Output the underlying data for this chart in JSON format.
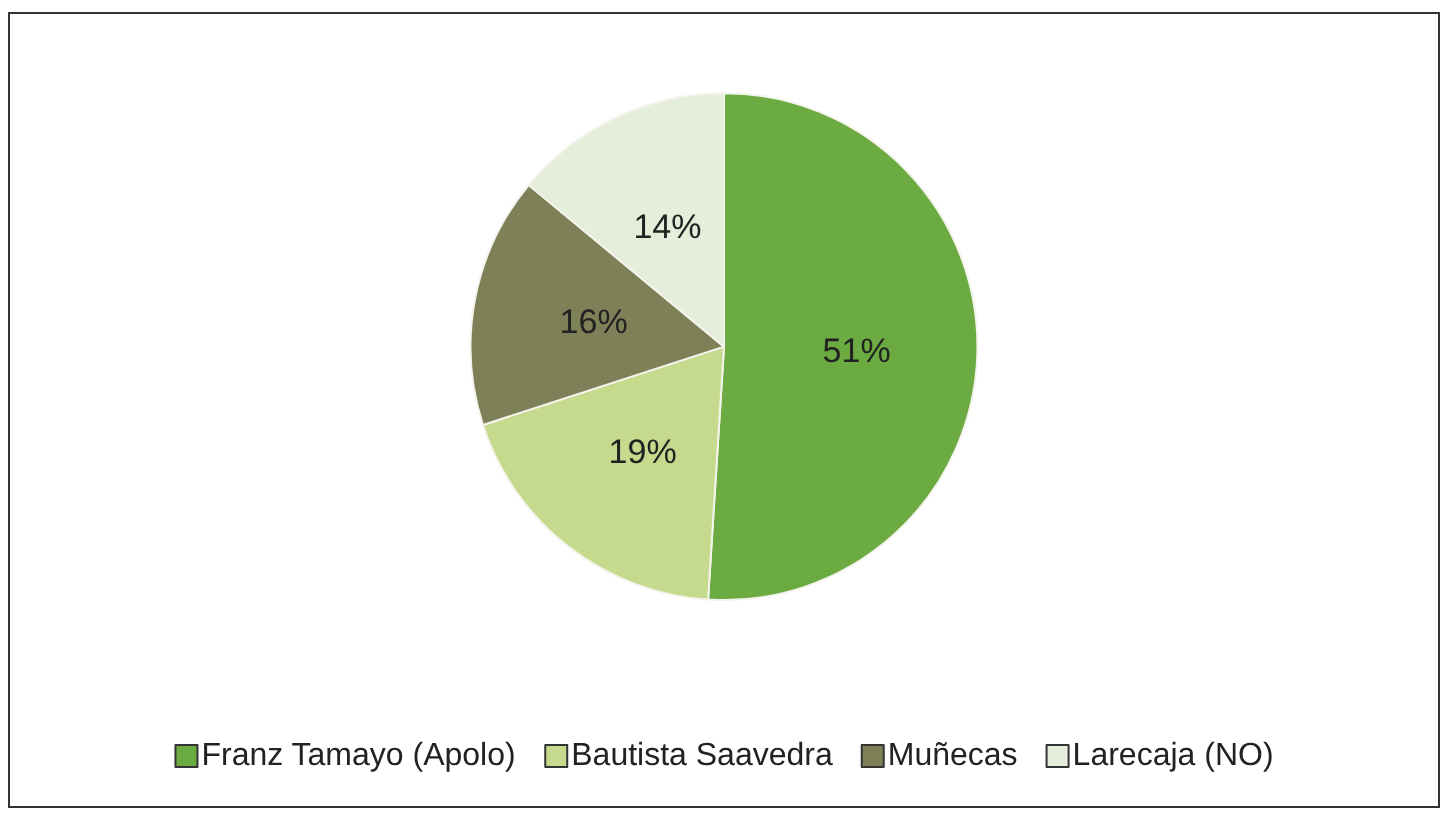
{
  "chart_data": {
    "type": "pie",
    "categories": [
      "Franz Tamayo (Apolo)",
      "Bautista Saavedra",
      "Muñecas",
      "Larecaja (NO)"
    ],
    "values": [
      51,
      19,
      16,
      14
    ],
    "colors": [
      "#6cab42",
      "#c6da8e",
      "#7e8158",
      "#e5eddb"
    ],
    "value_labels": [
      "51%",
      "19%",
      "16%",
      "14%"
    ],
    "legend": "bottom"
  }
}
